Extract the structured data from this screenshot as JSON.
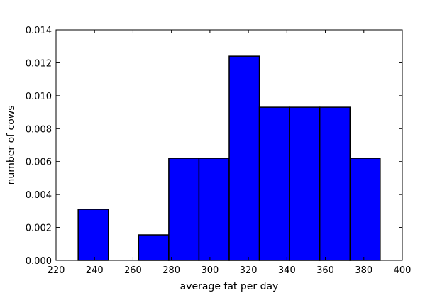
{
  "colors": {
    "bar_fill": "#0000ff",
    "bar_stroke": "#000000",
    "background": "#ffffff",
    "axis": "#000000"
  },
  "chart_data": {
    "type": "bar",
    "title": "",
    "xlabel": "average fat per day",
    "ylabel": "number of cows",
    "xlim": [
      220,
      400
    ],
    "ylim": [
      0,
      0.014
    ],
    "grid": false,
    "xticks": [
      220,
      240,
      260,
      280,
      300,
      320,
      340,
      360,
      380,
      400
    ],
    "xtick_labels": [
      "220",
      "240",
      "260",
      "280",
      "300",
      "320",
      "340",
      "360",
      "380",
      "400"
    ],
    "yticks": [
      0,
      0.002,
      0.004,
      0.006,
      0.008,
      0.01,
      0.012,
      0.014
    ],
    "ytick_labels": [
      "0.000",
      "0.002",
      "0.004",
      "0.006",
      "0.008",
      "0.010",
      "0.012",
      "0.014"
    ],
    "bins": [
      {
        "start": 231.5,
        "end": 247.2,
        "value": 0.0031
      },
      {
        "start": 247.2,
        "end": 262.9,
        "value": 0.0
      },
      {
        "start": 262.9,
        "end": 278.6,
        "value": 0.00155
      },
      {
        "start": 278.6,
        "end": 294.3,
        "value": 0.0062
      },
      {
        "start": 294.3,
        "end": 310.0,
        "value": 0.0062
      },
      {
        "start": 310.0,
        "end": 325.7,
        "value": 0.0124
      },
      {
        "start": 325.7,
        "end": 341.4,
        "value": 0.0093
      },
      {
        "start": 341.4,
        "end": 357.1,
        "value": 0.0093
      },
      {
        "start": 357.1,
        "end": 372.8,
        "value": 0.0093
      },
      {
        "start": 372.8,
        "end": 388.5,
        "value": 0.0062
      }
    ]
  }
}
